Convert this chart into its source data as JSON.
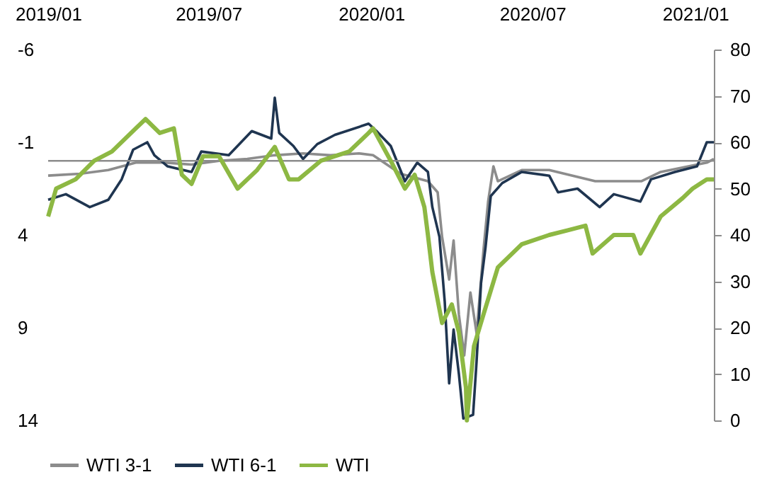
{
  "chart_data": {
    "type": "line",
    "xlim": [
      "2019-01-01",
      "2021-01-22"
    ],
    "xticks": [
      {
        "value": "2019-01-01",
        "label": "2019/01"
      },
      {
        "value": "2019-07-01",
        "label": "2019/07"
      },
      {
        "value": "2020-01-01",
        "label": "2020/01"
      },
      {
        "value": "2020-07-01",
        "label": "2020/07"
      },
      {
        "value": "2021-01-01",
        "label": "2021/01"
      }
    ],
    "ylim": [
      14,
      -6
    ],
    "yticks": [
      -6,
      -1,
      4,
      9,
      14
    ],
    "y2lim": [
      0,
      80
    ],
    "y2ticks": [
      0,
      10,
      20,
      30,
      40,
      50,
      60,
      70,
      80
    ],
    "grid": false,
    "legend": "bottom",
    "marker": "none",
    "line_style": "solid",
    "ref_lines": [
      {
        "axis": "y",
        "value": 0,
        "color": "#8c8c8c"
      }
    ],
    "series": [
      {
        "name": "WTI 3-1",
        "color": "#8c8c8c",
        "x": [
          "2019-01-01",
          "2019-02-06",
          "2019-03-10",
          "2019-04-10",
          "2019-05-12",
          "2019-06-12",
          "2019-07-13",
          "2019-08-14",
          "2019-09-14",
          "2019-10-16",
          "2019-11-16",
          "2019-12-18",
          "2020-01-03",
          "2020-02-03",
          "2020-03-05",
          "2020-03-16",
          "2020-03-21",
          "2020-03-29",
          "2020-04-03",
          "2020-04-09",
          "2020-04-15",
          "2020-04-22",
          "2020-04-29",
          "2020-05-07",
          "2020-05-12",
          "2020-05-18",
          "2020-05-23",
          "2020-06-19",
          "2020-07-20",
          "2020-09-10",
          "2020-11-01",
          "2020-11-23",
          "2021-01-14",
          "2021-01-22"
        ],
        "values": [
          0.8,
          0.7,
          0.5,
          0.1,
          0.1,
          0.2,
          0.0,
          -0.1,
          -0.3,
          -0.4,
          -0.3,
          -0.4,
          -0.3,
          0.7,
          1.1,
          1.7,
          4.1,
          6.4,
          4.3,
          8.3,
          10.5,
          7.1,
          9.3,
          4.7,
          2.2,
          0.3,
          1.1,
          0.5,
          0.5,
          1.1,
          1.1,
          0.6,
          0.1,
          -0.1
        ]
      },
      {
        "name": "WTI 6-1",
        "color": "#1f3550",
        "x": [
          "2019-01-01",
          "2019-01-21",
          "2019-02-17",
          "2019-03-10",
          "2019-03-25",
          "2019-04-07",
          "2019-04-23",
          "2019-05-01",
          "2019-05-16",
          "2019-06-12",
          "2019-06-23",
          "2019-07-24",
          "2019-08-19",
          "2019-09-10",
          "2019-09-14",
          "2019-09-19",
          "2019-10-05",
          "2019-10-16",
          "2019-11-01",
          "2019-11-21",
          "2019-12-29",
          "2020-01-07",
          "2020-01-23",
          "2020-02-08",
          "2020-02-22",
          "2020-03-05",
          "2020-03-10",
          "2020-03-18",
          "2020-03-24",
          "2020-03-29",
          "2020-04-03",
          "2020-04-09",
          "2020-04-14",
          "2020-04-25",
          "2020-04-29",
          "2020-05-04",
          "2020-05-09",
          "2020-05-15",
          "2020-05-28",
          "2020-06-19",
          "2020-07-20",
          "2020-07-30",
          "2020-08-21",
          "2020-09-15",
          "2020-10-01",
          "2020-10-31",
          "2020-11-12",
          "2020-12-09",
          "2021-01-03",
          "2021-01-14",
          "2021-01-22"
        ],
        "values": [
          2.1,
          1.8,
          2.5,
          2.1,
          1.0,
          -0.6,
          -1.0,
          -0.3,
          0.3,
          0.6,
          -0.5,
          -0.3,
          -1.6,
          -1.2,
          -3.4,
          -1.5,
          -0.8,
          -0.1,
          -0.9,
          -1.4,
          -2.0,
          -1.6,
          -0.8,
          1.1,
          0.1,
          0.6,
          2.5,
          4.1,
          7.6,
          12.0,
          9.1,
          11.5,
          13.9,
          13.7,
          10.8,
          6.6,
          4.7,
          1.9,
          1.2,
          0.6,
          0.8,
          1.7,
          1.5,
          2.5,
          1.8,
          2.2,
          1.0,
          0.6,
          0.3,
          -1.0,
          -1.0
        ]
      },
      {
        "name": "WTI",
        "color": "#8db843",
        "axis": "y2",
        "x": [
          "2019-01-01",
          "2019-01-10",
          "2019-02-01",
          "2019-02-22",
          "2019-03-14",
          "2019-04-10",
          "2019-04-21",
          "2019-05-07",
          "2019-05-23",
          "2019-06-01",
          "2019-06-12",
          "2019-06-25",
          "2019-07-13",
          "2019-08-03",
          "2019-08-25",
          "2019-09-14",
          "2019-09-30",
          "2019-10-11",
          "2019-11-05",
          "2019-12-07",
          "2019-12-29",
          "2020-01-03",
          "2020-01-23",
          "2020-02-08",
          "2020-02-19",
          "2020-03-01",
          "2020-03-05",
          "2020-03-10",
          "2020-03-21",
          "2020-04-01",
          "2020-04-09",
          "2020-04-17",
          "2020-04-18",
          "2020-04-26",
          "2020-05-07",
          "2020-05-23",
          "2020-06-19",
          "2020-07-20",
          "2020-08-10",
          "2020-08-30",
          "2020-09-07",
          "2020-10-01",
          "2020-10-23",
          "2020-10-31",
          "2020-11-23",
          "2020-12-18",
          "2020-12-29",
          "2021-01-14",
          "2021-01-22"
        ],
        "values": [
          44,
          50,
          52,
          56,
          58,
          63,
          65,
          62,
          63,
          53,
          51,
          57,
          57,
          50,
          54,
          59,
          52,
          52,
          56,
          58,
          62,
          63,
          56,
          50,
          53,
          46,
          40,
          32,
          21,
          25,
          19,
          7,
          0,
          16,
          23,
          33,
          38,
          40,
          41,
          42,
          36,
          40,
          40,
          36,
          44,
          48,
          50,
          52,
          52
        ]
      }
    ]
  }
}
